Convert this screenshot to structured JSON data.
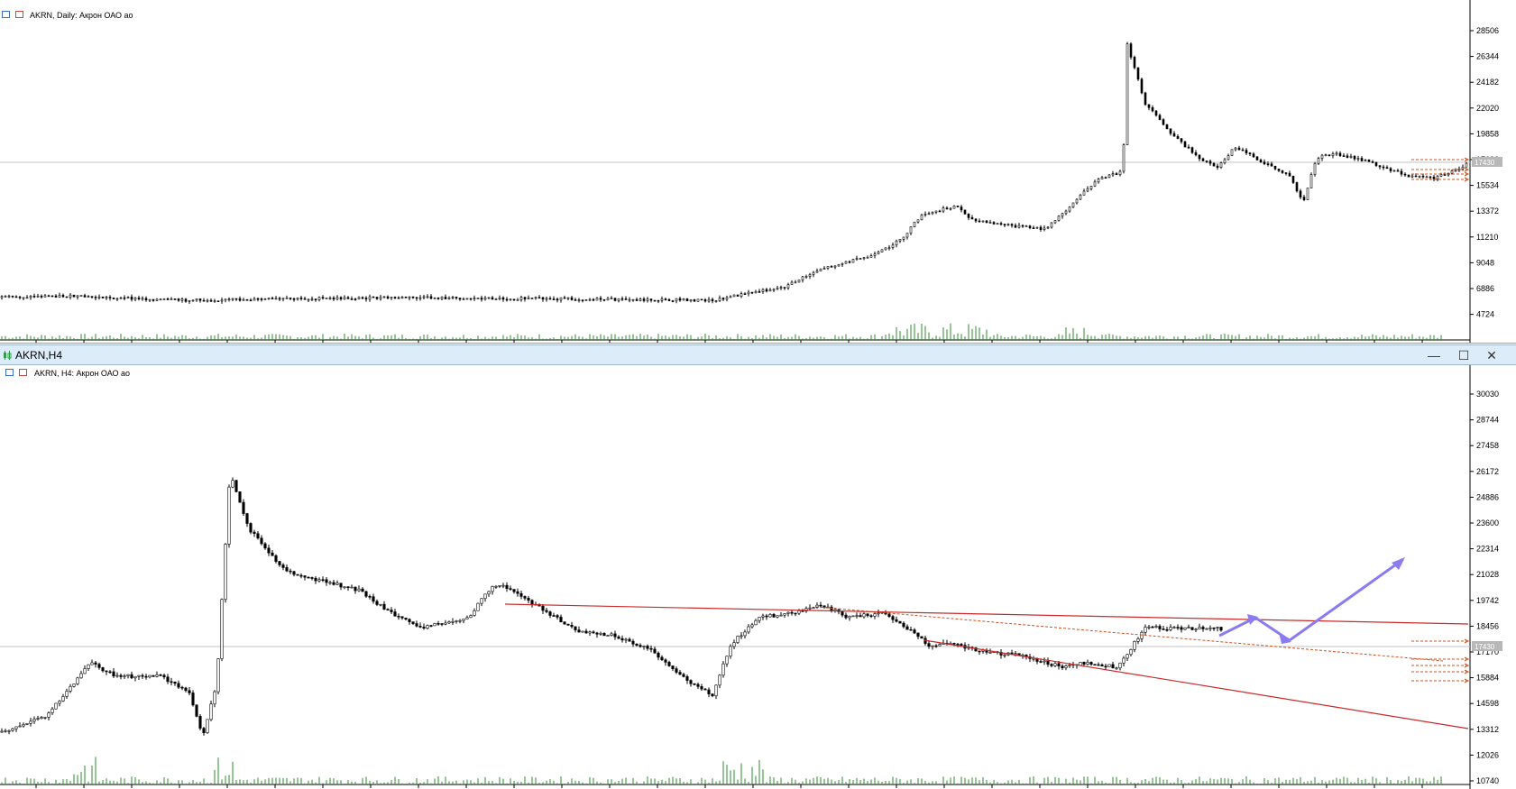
{
  "daily": {
    "label": "AKRN, Daily:  Акрон ОАО ао",
    "price_ticks": [
      "28506",
      "26344",
      "24182",
      "22020",
      "19858",
      "17696",
      "15534",
      "13372",
      "11210",
      "9048",
      "6886",
      "4724"
    ],
    "price_tag": "17430"
  },
  "h4_window": {
    "title": "AKRN,H4",
    "minimize_label": "—",
    "maximize_label": "☐",
    "close_label": "✕"
  },
  "h4": {
    "label": "AKRN, H4:  Акрон ОАО ао",
    "price_ticks": [
      "30030",
      "28744",
      "27458",
      "26172",
      "24886",
      "23600",
      "22314",
      "21028",
      "19742",
      "18456",
      "17170",
      "15884",
      "14598",
      "13312",
      "12026",
      "10740"
    ],
    "price_tag": "17430"
  },
  "colors": {
    "candle": "#000000",
    "volume": "#2e8b2e",
    "trendline": "#cc2a2a",
    "projection": "#8a7cf0",
    "level": "#d0501f",
    "grid": "#c0c0c0"
  }
}
